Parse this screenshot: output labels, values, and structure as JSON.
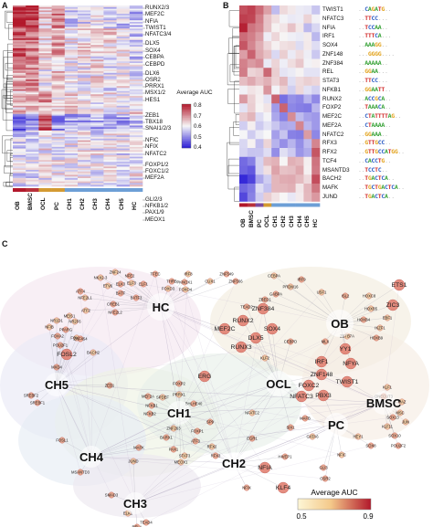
{
  "panel_a": {
    "label": "A",
    "gene_labels": [
      "RUNX2/3",
      "MEF2C",
      "NFIA",
      "TWIST1",
      "NFATC3/4",
      "DLX5",
      "SOX4",
      "CEBPA",
      "CEBPD",
      "DLX6",
      "OSR2",
      "PRRX1",
      "MSX1/2",
      "HES1",
      "ZEB1",
      "TBX18",
      "SNAI1/2/3",
      "NFIC",
      "NFIX",
      "NFATC2",
      "FOXP1/2",
      "FOXC1/2",
      "MEF2A",
      "GLI2/3",
      "NFKB1/2",
      "PAX1/9",
      "MEOX1"
    ],
    "column_labels": [
      "OB",
      "BMSC",
      "OCL",
      "PC",
      "CH1",
      "CH2",
      "CH3",
      "CH4",
      "CH5",
      "HC"
    ],
    "legend_title": "Average AUC",
    "legend_ticks": [
      "0.8",
      "0.7",
      "0.6",
      "0.5",
      "0.4"
    ]
  },
  "panel_b": {
    "label": "B",
    "gene_labels": [
      "TWIST1",
      "NFATC3",
      "NFIA",
      "IRF1",
      "SOX4",
      "ZNF148",
      "ZNF384",
      "REL",
      "STAT3",
      "NFKB1",
      "RUNX2",
      "FOXP2",
      "MEF2C",
      "MEF2A",
      "NFATC2",
      "RFX3",
      "RFX2",
      "TCF4",
      "MSANTD3",
      "BACH2",
      "MAFK",
      "JUND"
    ],
    "column_labels": [
      "OB",
      "BMSC",
      "PC",
      "OCL",
      "CH1",
      "CH2",
      "CH3",
      "CH4",
      "CH5",
      "HC"
    ],
    "motifs": [
      "..CAGATG..",
      "..TTCC...",
      "..TCCAA..",
      "..TTTCA...",
      "..AAAGG..",
      "...GGGG....",
      "..AAAAA..",
      "..GGAA...",
      "..TTCC...",
      "..GGAATT..",
      "..ACCGCA..",
      "..TAAACA..",
      "..CTATTTTAG..",
      "..CTAAAA..",
      "..GGAAA..",
      "..GTTGCC..",
      "..GTTGCCATGG..",
      "..CACCTG..",
      "..TCCTC..",
      "..TGACTCA..",
      "..TGCTGACTCA..",
      "..TGACTCA.."
    ]
  },
  "panel_c": {
    "label": "C",
    "legend_title": "Average AUC",
    "legend_ticks": [
      "0.5",
      "0.9"
    ],
    "hubs": [
      {
        "name": "HC",
        "group": "HC"
      },
      {
        "name": "OB",
        "group": "OB"
      },
      {
        "name": "OCL",
        "group": "OCL"
      },
      {
        "name": "BMSC",
        "group": "BMSC"
      },
      {
        "name": "PC",
        "group": "PC"
      },
      {
        "name": "CH1",
        "group": "CH1"
      },
      {
        "name": "CH2",
        "group": "CH2"
      },
      {
        "name": "CH3",
        "group": "CH3"
      },
      {
        "name": "CH4",
        "group": "CH4"
      },
      {
        "name": "CH5",
        "group": "CH5"
      }
    ],
    "nodes": [
      {
        "name": "ETS1",
        "big": true
      },
      {
        "name": "ZIC3",
        "big": true
      },
      {
        "name": "EBF1",
        "big": false
      },
      {
        "name": "IKZF1",
        "big": false
      },
      {
        "name": "HOXB5",
        "big": false
      },
      {
        "name": "HOXB4",
        "big": false
      },
      {
        "name": "ZBTB7A",
        "big": false
      },
      {
        "name": "MLX",
        "big": false
      },
      {
        "name": "USF1",
        "big": false
      },
      {
        "name": "ISL2",
        "big": false
      },
      {
        "name": "HOXC8",
        "big": false
      },
      {
        "name": "HOXB9",
        "big": false
      },
      {
        "name": "SOX4",
        "big": true
      },
      {
        "name": "CEBPD",
        "big": false
      },
      {
        "name": "DLX5",
        "big": true
      },
      {
        "name": "RUNX3",
        "big": true
      },
      {
        "name": "MEF2C",
        "big": true
      },
      {
        "name": "ERG",
        "big": true
      },
      {
        "name": "RUNX2",
        "big": true
      },
      {
        "name": "TEAD2",
        "big": false
      },
      {
        "name": "ZNF384",
        "big": true
      },
      {
        "name": "ZNF148",
        "big": true
      },
      {
        "name": "TWIST1",
        "big": true
      },
      {
        "name": "NFATC3",
        "big": true
      },
      {
        "name": "PBX3",
        "big": true
      },
      {
        "name": "IRF1",
        "big": true
      },
      {
        "name": "NFYA",
        "big": true
      },
      {
        "name": "KLF11",
        "big": false
      },
      {
        "name": "SOX13",
        "big": false
      },
      {
        "name": "SOX10",
        "big": false
      },
      {
        "name": "EGR1",
        "big": false
      },
      {
        "name": "NFIA",
        "big": true
      },
      {
        "name": "NFIX",
        "big": false
      },
      {
        "name": "KLF4",
        "big": true
      },
      {
        "name": "NFIC",
        "big": false
      },
      {
        "name": "FOXC2",
        "big": true
      },
      {
        "name": "STAT3",
        "big": false
      },
      {
        "name": "RFX2",
        "big": false
      },
      {
        "name": "RFX3",
        "big": false
      },
      {
        "name": "PRRX1",
        "big": false
      },
      {
        "name": "SPDEF",
        "big": false
      },
      {
        "name": "FOXP2",
        "big": false
      },
      {
        "name": "ELF1",
        "big": false
      },
      {
        "name": "ELF3",
        "big": false
      },
      {
        "name": "ELK3",
        "big": false
      },
      {
        "name": "ETV6",
        "big": false
      },
      {
        "name": "BATF",
        "big": false
      },
      {
        "name": "BATF3",
        "big": false
      },
      {
        "name": "CREB1",
        "big": false
      },
      {
        "name": "FOXO3",
        "big": false
      },
      {
        "name": "FOXO4",
        "big": false
      },
      {
        "name": "PKNOX1",
        "big": false
      },
      {
        "name": "THRB",
        "big": false
      },
      {
        "name": "IRF8",
        "big": false
      },
      {
        "name": "ATF4",
        "big": false
      },
      {
        "name": "NFE2L1",
        "big": false
      },
      {
        "name": "NFE2L2",
        "big": false
      },
      {
        "name": "ATF2",
        "big": false
      },
      {
        "name": "FOXA2",
        "big": false
      },
      {
        "name": "FOXL1",
        "big": false
      },
      {
        "name": "FOSL2",
        "big": true
      },
      {
        "name": "BACH2",
        "big": false
      },
      {
        "name": "NR1D1",
        "big": false
      },
      {
        "name": "ZEB1",
        "big": false
      },
      {
        "name": "SREBF2",
        "big": false
      },
      {
        "name": "SREBF1",
        "big": false
      },
      {
        "name": "RELA",
        "big": false
      },
      {
        "name": "MAFK",
        "big": false
      },
      {
        "name": "JUND",
        "big": false
      },
      {
        "name": "MSANTD3",
        "big": false
      },
      {
        "name": "SMAD3",
        "big": false
      },
      {
        "name": "FOSL1",
        "big": false
      },
      {
        "name": "TEAD4",
        "big": false
      },
      {
        "name": "ELK1",
        "big": false
      },
      {
        "name": "MEF2A",
        "big": false
      },
      {
        "name": "NFKB1",
        "big": false
      },
      {
        "name": "NFKB2",
        "big": false
      },
      {
        "name": "BHLHE40",
        "big": false
      },
      {
        "name": "ZNF263",
        "big": false
      },
      {
        "name": "SIX1",
        "big": false
      },
      {
        "name": "GATA6",
        "big": false
      },
      {
        "name": "MAFB",
        "big": false
      },
      {
        "name": "ATF3",
        "big": false
      },
      {
        "name": "KLF2",
        "big": false
      },
      {
        "name": "GABPA",
        "big": false
      },
      {
        "name": "ZBED1",
        "big": false
      },
      {
        "name": "PRDM16",
        "big": false
      },
      {
        "name": "IRF9",
        "big": false
      },
      {
        "name": "ZNF566",
        "big": false
      },
      {
        "name": "ZNF549",
        "big": false
      },
      {
        "name": "CUX1",
        "big": false
      },
      {
        "name": "MSC",
        "big": false
      },
      {
        "name": "JUN",
        "big": false
      },
      {
        "name": "MAZ",
        "big": false
      },
      {
        "name": "POU2F2",
        "big": false
      },
      {
        "name": "ONECUT3",
        "big": false
      },
      {
        "name": "HEY1",
        "big": false
      },
      {
        "name": "GLI3",
        "big": false
      },
      {
        "name": "OSR2",
        "big": false
      },
      {
        "name": "SOX8",
        "big": false
      },
      {
        "name": "HIVEP1",
        "big": false
      },
      {
        "name": "NFATC2",
        "big": false
      },
      {
        "name": "SP9",
        "big": false
      },
      {
        "name": "FOXP1",
        "big": false
      },
      {
        "name": "BARX1",
        "big": false
      },
      {
        "name": "YY1",
        "big": true
      },
      {
        "name": "KLF1",
        "big": false
      },
      {
        "name": "ZNF24",
        "big": false
      },
      {
        "name": "NR2F6",
        "big": false
      },
      {
        "name": "MXD4",
        "big": false
      },
      {
        "name": "NFIB",
        "big": false
      },
      {
        "name": "PAX1",
        "big": false
      },
      {
        "name": "MEOX1",
        "big": false
      },
      {
        "name": "ZNF454",
        "big": false
      },
      {
        "name": "POU2F1",
        "big": false
      },
      {
        "name": "PPARG",
        "big": false
      },
      {
        "name": "MEIS1",
        "big": false
      },
      {
        "name": "NKX2-3",
        "big": false
      },
      {
        "name": "NFE2",
        "big": false
      },
      {
        "name": "TFEC",
        "big": false
      },
      {
        "name": "CEBPA",
        "big": false
      }
    ]
  },
  "colors": {
    "high": "#b2182b",
    "mid": "#f7f7f7",
    "low": "#2c1fd6",
    "node_fill": "#e07a6a",
    "node_edge": "#b8433a",
    "groups": {
      "OB": "#b2182b",
      "BMSC": "#b8303a",
      "OCL": "#d49a32",
      "PC": "#7a4a9e",
      "CH": "#6d9fd6",
      "HC": "#6d9fd6"
    }
  }
}
